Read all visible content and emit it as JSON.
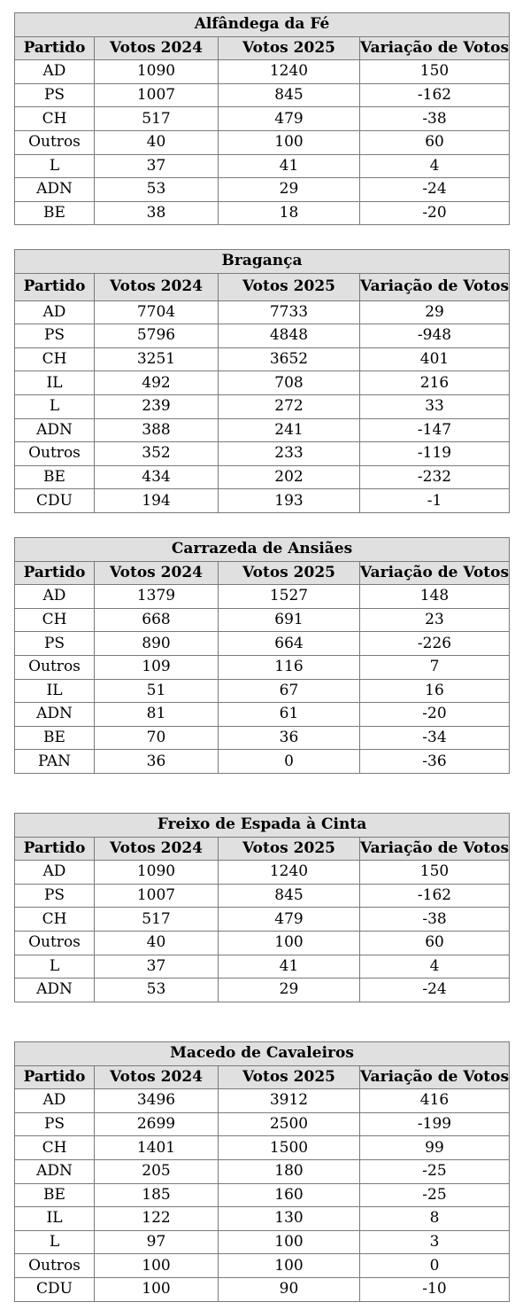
{
  "headers": [
    "Partido",
    "Votos 2024",
    "Votos 2025",
    "Variação de Votos"
  ],
  "tables": [
    {
      "title": "Alfândega da Fé",
      "rows": [
        [
          "AD",
          "1090",
          "1240",
          "150"
        ],
        [
          "PS",
          "1007",
          "845",
          "-162"
        ],
        [
          "CH",
          "517",
          "479",
          "-38"
        ],
        [
          "Outros",
          "40",
          "100",
          "60"
        ],
        [
          "L",
          "37",
          "41",
          "4"
        ],
        [
          "ADN",
          "53",
          "29",
          "-24"
        ],
        [
          "BE",
          "38",
          "18",
          "-20"
        ]
      ]
    },
    {
      "title": "Bragança",
      "rows": [
        [
          "AD",
          "7704",
          "7733",
          "29"
        ],
        [
          "PS",
          "5796",
          "4848",
          "-948"
        ],
        [
          "CH",
          "3251",
          "3652",
          "401"
        ],
        [
          "IL",
          "492",
          "708",
          "216"
        ],
        [
          "L",
          "239",
          "272",
          "33"
        ],
        [
          "ADN",
          "388",
          "241",
          "-147"
        ],
        [
          "Outros",
          "352",
          "233",
          "-119"
        ],
        [
          "BE",
          "434",
          "202",
          "-232"
        ],
        [
          "CDU",
          "194",
          "193",
          "-1"
        ]
      ]
    },
    {
      "title": "Carrazeda de Ansiães",
      "rows": [
        [
          "AD",
          "1379",
          "1527",
          "148"
        ],
        [
          "CH",
          "668",
          "691",
          "23"
        ],
        [
          "PS",
          "890",
          "664",
          "-226"
        ],
        [
          "Outros",
          "109",
          "116",
          "7"
        ],
        [
          "IL",
          "51",
          "67",
          "16"
        ],
        [
          "ADN",
          "81",
          "61",
          "-20"
        ],
        [
          "BE",
          "70",
          "36",
          "-34"
        ],
        [
          "PAN",
          "36",
          "0",
          "-36"
        ]
      ]
    },
    {
      "title": "Freixo de Espada à Cinta",
      "rows": [
        [
          "AD",
          "1090",
          "1240",
          "150"
        ],
        [
          "PS",
          "1007",
          "845",
          "-162"
        ],
        [
          "CH",
          "517",
          "479",
          "-38"
        ],
        [
          "Outros",
          "40",
          "100",
          "60"
        ],
        [
          "L",
          "37",
          "41",
          "4"
        ],
        [
          "ADN",
          "53",
          "29",
          "-24"
        ]
      ]
    },
    {
      "title": "Macedo de Cavaleiros",
      "rows": [
        [
          "AD",
          "3496",
          "3912",
          "416"
        ],
        [
          "PS",
          "2699",
          "2500",
          "-199"
        ],
        [
          "CH",
          "1401",
          "1500",
          "99"
        ],
        [
          "ADN",
          "205",
          "180",
          "-25"
        ],
        [
          "BE",
          "185",
          "160",
          "-25"
        ],
        [
          "IL",
          "122",
          "130",
          "8"
        ],
        [
          "L",
          "97",
          "100",
          "3"
        ],
        [
          "Outros",
          "100",
          "100",
          "0"
        ],
        [
          "CDU",
          "100",
          "90",
          "-10"
        ]
      ]
    }
  ]
}
